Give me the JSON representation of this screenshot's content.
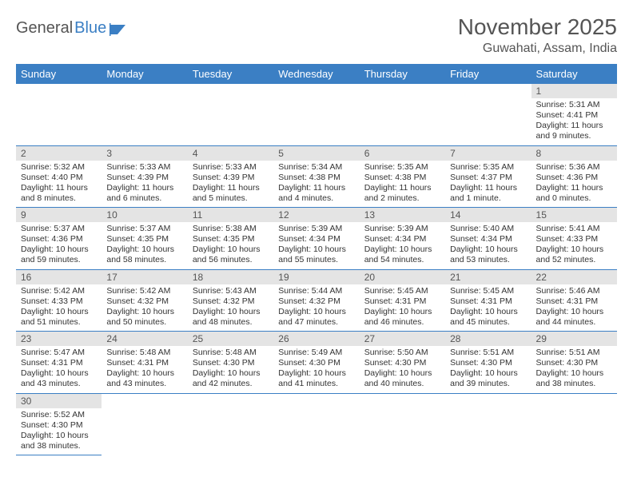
{
  "logo": {
    "text1": "General",
    "text2": "Blue"
  },
  "title": "November 2025",
  "location": "Guwahati, Assam, India",
  "colors": {
    "header_bg": "#3b7fc4",
    "header_text": "#ffffff",
    "daynum_bg": "#e4e4e4",
    "border": "#3b7fc4",
    "page_bg": "#ffffff",
    "title_color": "#555555"
  },
  "weekdays": [
    "Sunday",
    "Monday",
    "Tuesday",
    "Wednesday",
    "Thursday",
    "Friday",
    "Saturday"
  ],
  "weeks": [
    [
      null,
      null,
      null,
      null,
      null,
      null,
      {
        "n": "1",
        "sunrise": "Sunrise: 5:31 AM",
        "sunset": "Sunset: 4:41 PM",
        "daylight": "Daylight: 11 hours and 9 minutes."
      }
    ],
    [
      {
        "n": "2",
        "sunrise": "Sunrise: 5:32 AM",
        "sunset": "Sunset: 4:40 PM",
        "daylight": "Daylight: 11 hours and 8 minutes."
      },
      {
        "n": "3",
        "sunrise": "Sunrise: 5:33 AM",
        "sunset": "Sunset: 4:39 PM",
        "daylight": "Daylight: 11 hours and 6 minutes."
      },
      {
        "n": "4",
        "sunrise": "Sunrise: 5:33 AM",
        "sunset": "Sunset: 4:39 PM",
        "daylight": "Daylight: 11 hours and 5 minutes."
      },
      {
        "n": "5",
        "sunrise": "Sunrise: 5:34 AM",
        "sunset": "Sunset: 4:38 PM",
        "daylight": "Daylight: 11 hours and 4 minutes."
      },
      {
        "n": "6",
        "sunrise": "Sunrise: 5:35 AM",
        "sunset": "Sunset: 4:38 PM",
        "daylight": "Daylight: 11 hours and 2 minutes."
      },
      {
        "n": "7",
        "sunrise": "Sunrise: 5:35 AM",
        "sunset": "Sunset: 4:37 PM",
        "daylight": "Daylight: 11 hours and 1 minute."
      },
      {
        "n": "8",
        "sunrise": "Sunrise: 5:36 AM",
        "sunset": "Sunset: 4:36 PM",
        "daylight": "Daylight: 11 hours and 0 minutes."
      }
    ],
    [
      {
        "n": "9",
        "sunrise": "Sunrise: 5:37 AM",
        "sunset": "Sunset: 4:36 PM",
        "daylight": "Daylight: 10 hours and 59 minutes."
      },
      {
        "n": "10",
        "sunrise": "Sunrise: 5:37 AM",
        "sunset": "Sunset: 4:35 PM",
        "daylight": "Daylight: 10 hours and 58 minutes."
      },
      {
        "n": "11",
        "sunrise": "Sunrise: 5:38 AM",
        "sunset": "Sunset: 4:35 PM",
        "daylight": "Daylight: 10 hours and 56 minutes."
      },
      {
        "n": "12",
        "sunrise": "Sunrise: 5:39 AM",
        "sunset": "Sunset: 4:34 PM",
        "daylight": "Daylight: 10 hours and 55 minutes."
      },
      {
        "n": "13",
        "sunrise": "Sunrise: 5:39 AM",
        "sunset": "Sunset: 4:34 PM",
        "daylight": "Daylight: 10 hours and 54 minutes."
      },
      {
        "n": "14",
        "sunrise": "Sunrise: 5:40 AM",
        "sunset": "Sunset: 4:34 PM",
        "daylight": "Daylight: 10 hours and 53 minutes."
      },
      {
        "n": "15",
        "sunrise": "Sunrise: 5:41 AM",
        "sunset": "Sunset: 4:33 PM",
        "daylight": "Daylight: 10 hours and 52 minutes."
      }
    ],
    [
      {
        "n": "16",
        "sunrise": "Sunrise: 5:42 AM",
        "sunset": "Sunset: 4:33 PM",
        "daylight": "Daylight: 10 hours and 51 minutes."
      },
      {
        "n": "17",
        "sunrise": "Sunrise: 5:42 AM",
        "sunset": "Sunset: 4:32 PM",
        "daylight": "Daylight: 10 hours and 50 minutes."
      },
      {
        "n": "18",
        "sunrise": "Sunrise: 5:43 AM",
        "sunset": "Sunset: 4:32 PM",
        "daylight": "Daylight: 10 hours and 48 minutes."
      },
      {
        "n": "19",
        "sunrise": "Sunrise: 5:44 AM",
        "sunset": "Sunset: 4:32 PM",
        "daylight": "Daylight: 10 hours and 47 minutes."
      },
      {
        "n": "20",
        "sunrise": "Sunrise: 5:45 AM",
        "sunset": "Sunset: 4:31 PM",
        "daylight": "Daylight: 10 hours and 46 minutes."
      },
      {
        "n": "21",
        "sunrise": "Sunrise: 5:45 AM",
        "sunset": "Sunset: 4:31 PM",
        "daylight": "Daylight: 10 hours and 45 minutes."
      },
      {
        "n": "22",
        "sunrise": "Sunrise: 5:46 AM",
        "sunset": "Sunset: 4:31 PM",
        "daylight": "Daylight: 10 hours and 44 minutes."
      }
    ],
    [
      {
        "n": "23",
        "sunrise": "Sunrise: 5:47 AM",
        "sunset": "Sunset: 4:31 PM",
        "daylight": "Daylight: 10 hours and 43 minutes."
      },
      {
        "n": "24",
        "sunrise": "Sunrise: 5:48 AM",
        "sunset": "Sunset: 4:31 PM",
        "daylight": "Daylight: 10 hours and 43 minutes."
      },
      {
        "n": "25",
        "sunrise": "Sunrise: 5:48 AM",
        "sunset": "Sunset: 4:30 PM",
        "daylight": "Daylight: 10 hours and 42 minutes."
      },
      {
        "n": "26",
        "sunrise": "Sunrise: 5:49 AM",
        "sunset": "Sunset: 4:30 PM",
        "daylight": "Daylight: 10 hours and 41 minutes."
      },
      {
        "n": "27",
        "sunrise": "Sunrise: 5:50 AM",
        "sunset": "Sunset: 4:30 PM",
        "daylight": "Daylight: 10 hours and 40 minutes."
      },
      {
        "n": "28",
        "sunrise": "Sunrise: 5:51 AM",
        "sunset": "Sunset: 4:30 PM",
        "daylight": "Daylight: 10 hours and 39 minutes."
      },
      {
        "n": "29",
        "sunrise": "Sunrise: 5:51 AM",
        "sunset": "Sunset: 4:30 PM",
        "daylight": "Daylight: 10 hours and 38 minutes."
      }
    ],
    [
      {
        "n": "30",
        "sunrise": "Sunrise: 5:52 AM",
        "sunset": "Sunset: 4:30 PM",
        "daylight": "Daylight: 10 hours and 38 minutes."
      },
      null,
      null,
      null,
      null,
      null,
      null
    ]
  ]
}
